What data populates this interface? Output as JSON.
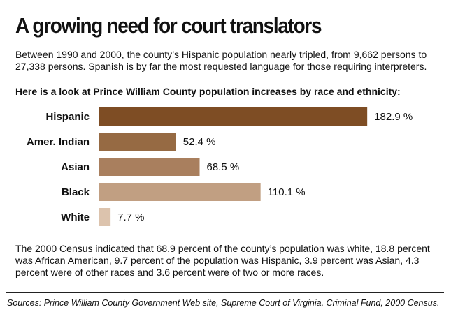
{
  "header": {
    "title": "A growing need for court translators",
    "intro": "Between 1990 and 2000, the county’s Hispanic population nearly tripled, from 9,662 persons to 27,338 persons. Spanish is by far the most requested language for those requiring interpreters."
  },
  "chart_data": {
    "type": "bar",
    "orientation": "horizontal",
    "title": "Here is a look at Prince William County population increases by race and ethnicity:",
    "categories": [
      "Hispanic",
      "Amer. Indian",
      "Asian",
      "Black",
      "White"
    ],
    "values": [
      182.9,
      52.4,
      68.5,
      110.1,
      7.7
    ],
    "value_labels": [
      "182.9 %",
      "52.4 %",
      "68.5 %",
      "110.1 %",
      "7.7 %"
    ],
    "colors": [
      "#7e4d24",
      "#966a43",
      "#a97f5e",
      "#c19f82",
      "#dcc3ad"
    ],
    "grid": false,
    "legend": "none"
  },
  "footer": {
    "outro": "The 2000 Census indicated that 68.9 percent of the county’s population was white, 18.8 percent was African American, 9.7 percent of the population was Hispanic, 3.9 percent was Asian, 4.3 percent were of other races and 3.6 percent were of two or more races.",
    "sources": "Sources: Prince William County Government Web site, Supreme Court of Virginia, Criminal Fund, 2000 Census."
  }
}
